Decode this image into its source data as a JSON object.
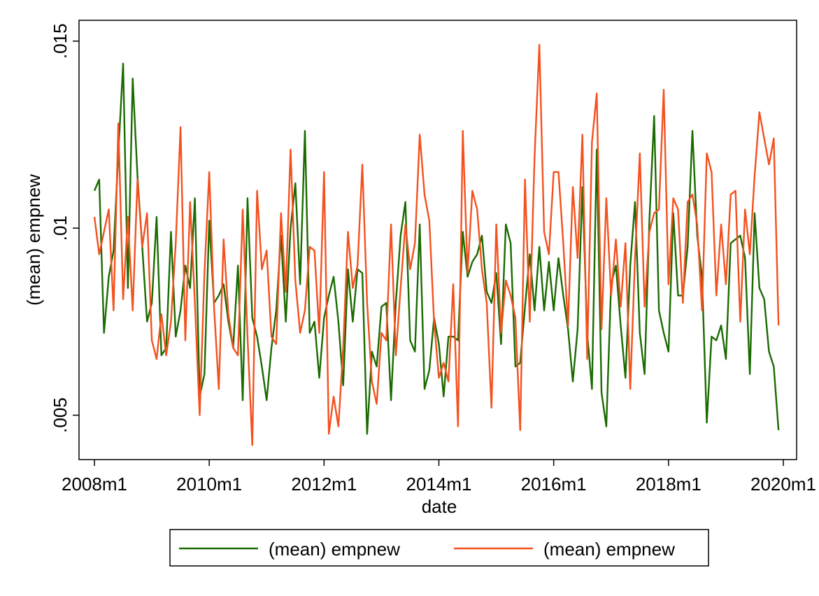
{
  "chart_data": {
    "type": "line",
    "title": "",
    "xlabel": "date",
    "ylabel": "(mean) empnew",
    "x_start": "2008m1",
    "x_end": "2019m12",
    "xlim": [
      "2008m1",
      "2020m1"
    ],
    "ylim": [
      0.004,
      0.0155
    ],
    "xticks": [
      {
        "value": "2008m1",
        "label": "2008m1"
      },
      {
        "value": "2010m1",
        "label": "2010m1"
      },
      {
        "value": "2012m1",
        "label": "2012m1"
      },
      {
        "value": "2014m1",
        "label": "2014m1"
      },
      {
        "value": "2016m1",
        "label": "2016m1"
      },
      {
        "value": "2018m1",
        "label": "2018m1"
      },
      {
        "value": "2020m1",
        "label": "2020m1"
      }
    ],
    "yticks": [
      {
        "value": 0.005,
        "label": ".005"
      },
      {
        "value": 0.01,
        "label": ".01"
      },
      {
        "value": 0.015,
        "label": ".015"
      }
    ],
    "grid": false,
    "legend_position": "bottom",
    "series": [
      {
        "name": "(mean) empnew",
        "color": "#1a6b00",
        "values": [
          0.011,
          0.0113,
          0.0072,
          0.0087,
          0.0094,
          0.012,
          0.0144,
          0.0084,
          0.014,
          0.0114,
          0.0095,
          0.0075,
          0.008,
          0.0103,
          0.0066,
          0.0068,
          0.0099,
          0.0071,
          0.0078,
          0.009,
          0.0084,
          0.0108,
          0.0055,
          0.0061,
          0.0102,
          0.008,
          0.0082,
          0.0085,
          0.0075,
          0.0068,
          0.009,
          0.0054,
          0.0108,
          0.0076,
          0.0071,
          0.0063,
          0.0054,
          0.0068,
          0.0078,
          0.0098,
          0.0075,
          0.01,
          0.0112,
          0.0085,
          0.0126,
          0.0072,
          0.0075,
          0.006,
          0.0076,
          0.0082,
          0.0087,
          0.0075,
          0.0058,
          0.0089,
          0.0075,
          0.0089,
          0.0088,
          0.0045,
          0.0067,
          0.0063,
          0.0079,
          0.008,
          0.0054,
          0.008,
          0.0098,
          0.0107,
          0.007,
          0.0067,
          0.0101,
          0.0057,
          0.0062,
          0.0076,
          0.0069,
          0.0055,
          0.0071,
          0.0071,
          0.007,
          0.0099,
          0.0087,
          0.0091,
          0.0093,
          0.0098,
          0.0083,
          0.008,
          0.0088,
          0.0069,
          0.0101,
          0.0096,
          0.0063,
          0.0064,
          0.0079,
          0.0093,
          0.0078,
          0.0095,
          0.0078,
          0.0091,
          0.0078,
          0.0092,
          0.0082,
          0.0073,
          0.0059,
          0.0073,
          0.0111,
          0.0072,
          0.0057,
          0.0121,
          0.0056,
          0.0047,
          0.0085,
          0.009,
          0.0074,
          0.006,
          0.009,
          0.0107,
          0.0072,
          0.0061,
          0.0102,
          0.013,
          0.0078,
          0.0072,
          0.0067,
          0.0104,
          0.0082,
          0.0082,
          0.0095,
          0.0126,
          0.0098,
          0.0087,
          0.0048,
          0.0071,
          0.007,
          0.0074,
          0.0065,
          0.0096,
          0.0097,
          0.0098,
          0.0092,
          0.0061,
          0.0104,
          0.0084,
          0.0081,
          0.0067,
          0.0063,
          0.0046
        ]
      },
      {
        "name": "(mean) empnew",
        "color": "#f4511e",
        "values": [
          0.0103,
          0.0093,
          0.0099,
          0.0105,
          0.0078,
          0.0128,
          0.0081,
          0.0103,
          0.0078,
          0.0113,
          0.0095,
          0.0104,
          0.007,
          0.0065,
          0.0077,
          0.0066,
          0.0075,
          0.0096,
          0.0127,
          0.007,
          0.0107,
          0.008,
          0.005,
          0.0088,
          0.0115,
          0.0079,
          0.0057,
          0.0097,
          0.0077,
          0.0068,
          0.0066,
          0.0105,
          0.0071,
          0.0042,
          0.011,
          0.0089,
          0.0094,
          0.0071,
          0.0069,
          0.0104,
          0.0083,
          0.0121,
          0.0086,
          0.0072,
          0.0078,
          0.0095,
          0.0094,
          0.0072,
          0.0115,
          0.0045,
          0.0055,
          0.0047,
          0.0068,
          0.0099,
          0.0084,
          0.009,
          0.0117,
          0.008,
          0.0059,
          0.0053,
          0.0072,
          0.007,
          0.0101,
          0.0066,
          0.0084,
          0.0101,
          0.0089,
          0.0096,
          0.0125,
          0.0109,
          0.0102,
          0.0075,
          0.006,
          0.0064,
          0.0059,
          0.0085,
          0.0047,
          0.0126,
          0.0088,
          0.011,
          0.0105,
          0.0089,
          0.008,
          0.0052,
          0.0101,
          0.0072,
          0.0086,
          0.0082,
          0.0076,
          0.0046,
          0.0113,
          0.0075,
          0.0119,
          0.0149,
          0.0099,
          0.0093,
          0.0115,
          0.0115,
          0.0096,
          0.0074,
          0.0111,
          0.0092,
          0.0125,
          0.0065,
          0.0123,
          0.0136,
          0.0073,
          0.0108,
          0.0082,
          0.0097,
          0.0079,
          0.0096,
          0.0057,
          0.0092,
          0.012,
          0.0079,
          0.0099,
          0.0104,
          0.0105,
          0.0137,
          0.0085,
          0.0108,
          0.0105,
          0.008,
          0.0107,
          0.0109,
          0.0101,
          0.0078,
          0.012,
          0.0115,
          0.0082,
          0.0101,
          0.0085,
          0.0109,
          0.011,
          0.0075,
          0.0105,
          0.0093,
          0.0114,
          0.0131,
          0.0124,
          0.0117,
          0.0124,
          0.0074
        ]
      }
    ]
  }
}
